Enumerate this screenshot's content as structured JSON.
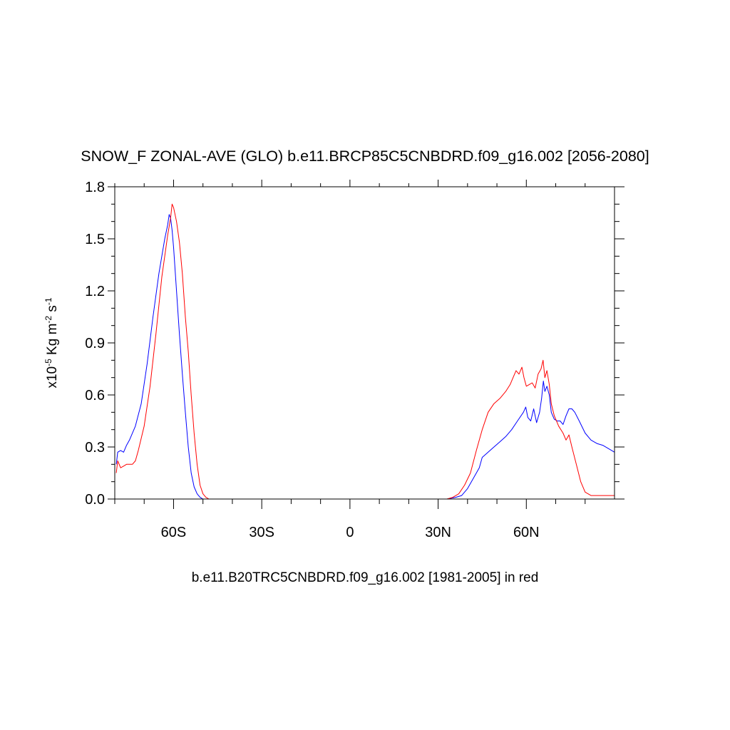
{
  "chart_data": {
    "type": "line",
    "title": "SNOW_F ZONAL-AVE (GLO) b.e11.BRCP85C5CNBDRD.f09_g16.002 [2056-2080]",
    "subtitle": "b.e11.B20TRC5CNBDRD.f09_g16.002 [1981-2005] in red",
    "ylabel": {
      "base": "x10",
      "exp1": "-5",
      "mid1": " Kg m",
      "exp2": "-2",
      "mid2": " s",
      "exp3": "-1"
    },
    "xlim": [
      -80,
      90
    ],
    "ylim": [
      0,
      1.8
    ],
    "x_ticks": [
      {
        "value": -60,
        "label": "60S"
      },
      {
        "value": -30,
        "label": "30S"
      },
      {
        "value": 0,
        "label": "0"
      },
      {
        "value": 30,
        "label": "30N"
      },
      {
        "value": 60,
        "label": "60N"
      }
    ],
    "y_ticks": [
      {
        "value": 0,
        "label": "0.0"
      },
      {
        "value": 0.3,
        "label": "0.3"
      },
      {
        "value": 0.6,
        "label": "0.6"
      },
      {
        "value": 0.9,
        "label": "0.9"
      },
      {
        "value": 1.2,
        "label": "1.2"
      },
      {
        "value": 1.5,
        "label": "1.5"
      },
      {
        "value": 1.8,
        "label": "1.8"
      }
    ],
    "series": [
      {
        "color": "#0000ff",
        "points": [
          [
            -79.5,
            0.2
          ],
          [
            -79,
            0.27
          ],
          [
            -78,
            0.28
          ],
          [
            -77,
            0.27
          ],
          [
            -76,
            0.31
          ],
          [
            -75,
            0.34
          ],
          [
            -73,
            0.42
          ],
          [
            -71,
            0.55
          ],
          [
            -69,
            0.78
          ],
          [
            -67,
            1.05
          ],
          [
            -65,
            1.3
          ],
          [
            -64,
            1.4
          ],
          [
            -63,
            1.5
          ],
          [
            -62,
            1.58
          ],
          [
            -61.5,
            1.64
          ],
          [
            -61,
            1.62
          ],
          [
            -60.5,
            1.55
          ],
          [
            -60,
            1.45
          ],
          [
            -59,
            1.2
          ],
          [
            -58,
            0.95
          ],
          [
            -57,
            0.72
          ],
          [
            -56,
            0.5
          ],
          [
            -55,
            0.3
          ],
          [
            -54,
            0.15
          ],
          [
            -53,
            0.07
          ],
          [
            -52,
            0.03
          ],
          [
            -51,
            0.01
          ],
          [
            -50,
            0.0
          ],
          [
            -45,
            0.0
          ],
          [
            30,
            0.0
          ],
          [
            33,
            0.0
          ],
          [
            36,
            0.01
          ],
          [
            38,
            0.02
          ],
          [
            40,
            0.06
          ],
          [
            42,
            0.12
          ],
          [
            44,
            0.18
          ],
          [
            45,
            0.24
          ],
          [
            47,
            0.27
          ],
          [
            49,
            0.3
          ],
          [
            51,
            0.33
          ],
          [
            53,
            0.36
          ],
          [
            55,
            0.4
          ],
          [
            57,
            0.45
          ],
          [
            59,
            0.5
          ],
          [
            59.8,
            0.53
          ],
          [
            60.5,
            0.47
          ],
          [
            61.5,
            0.45
          ],
          [
            62.5,
            0.52
          ],
          [
            63.5,
            0.44
          ],
          [
            64.5,
            0.5
          ],
          [
            65.2,
            0.58
          ],
          [
            65.8,
            0.68
          ],
          [
            66.3,
            0.62
          ],
          [
            67,
            0.65
          ],
          [
            67.8,
            0.6
          ],
          [
            68.5,
            0.5
          ],
          [
            69.5,
            0.46
          ],
          [
            70.5,
            0.45
          ],
          [
            71.5,
            0.45
          ],
          [
            72.5,
            0.43
          ],
          [
            73.5,
            0.48
          ],
          [
            74.5,
            0.52
          ],
          [
            75.5,
            0.52
          ],
          [
            76.5,
            0.5
          ],
          [
            78,
            0.45
          ],
          [
            80,
            0.38
          ],
          [
            82,
            0.34
          ],
          [
            84,
            0.32
          ],
          [
            86,
            0.31
          ],
          [
            88,
            0.29
          ],
          [
            90,
            0.27
          ]
        ]
      },
      {
        "color": "#ff0000",
        "points": [
          [
            -79.5,
            0.15
          ],
          [
            -79,
            0.22
          ],
          [
            -78,
            0.18
          ],
          [
            -77,
            0.19
          ],
          [
            -76,
            0.2
          ],
          [
            -74,
            0.2
          ],
          [
            -73,
            0.22
          ],
          [
            -72,
            0.28
          ],
          [
            -70,
            0.42
          ],
          [
            -68,
            0.65
          ],
          [
            -66,
            0.95
          ],
          [
            -64,
            1.28
          ],
          [
            -62,
            1.52
          ],
          [
            -61,
            1.62
          ],
          [
            -60.5,
            1.7
          ],
          [
            -60,
            1.68
          ],
          [
            -59,
            1.6
          ],
          [
            -58,
            1.48
          ],
          [
            -57,
            1.3
          ],
          [
            -56,
            1.05
          ],
          [
            -55,
            0.85
          ],
          [
            -54,
            0.6
          ],
          [
            -53,
            0.38
          ],
          [
            -52,
            0.2
          ],
          [
            -51,
            0.08
          ],
          [
            -50,
            0.03
          ],
          [
            -49,
            0.01
          ],
          [
            -48,
            0.0
          ],
          [
            -45,
            0.0
          ],
          [
            30,
            0.0
          ],
          [
            33,
            0.0
          ],
          [
            35,
            0.01
          ],
          [
            37,
            0.03
          ],
          [
            39,
            0.08
          ],
          [
            41,
            0.15
          ],
          [
            43,
            0.28
          ],
          [
            45,
            0.4
          ],
          [
            47,
            0.5
          ],
          [
            49,
            0.55
          ],
          [
            51,
            0.58
          ],
          [
            53,
            0.62
          ],
          [
            54.5,
            0.66
          ],
          [
            55.5,
            0.7
          ],
          [
            56.5,
            0.74
          ],
          [
            57.5,
            0.72
          ],
          [
            58.5,
            0.76
          ],
          [
            59.2,
            0.7
          ],
          [
            60,
            0.65
          ],
          [
            61,
            0.66
          ],
          [
            62,
            0.67
          ],
          [
            63,
            0.64
          ],
          [
            64,
            0.72
          ],
          [
            65,
            0.75
          ],
          [
            65.7,
            0.8
          ],
          [
            66.3,
            0.7
          ],
          [
            67,
            0.74
          ],
          [
            67.8,
            0.66
          ],
          [
            68.5,
            0.55
          ],
          [
            69.5,
            0.48
          ],
          [
            71,
            0.42
          ],
          [
            72.5,
            0.38
          ],
          [
            73.5,
            0.34
          ],
          [
            74.5,
            0.37
          ],
          [
            75.5,
            0.3
          ],
          [
            77,
            0.2
          ],
          [
            78.5,
            0.1
          ],
          [
            80,
            0.04
          ],
          [
            82,
            0.02
          ],
          [
            86,
            0.02
          ],
          [
            90,
            0.02
          ]
        ]
      }
    ]
  }
}
